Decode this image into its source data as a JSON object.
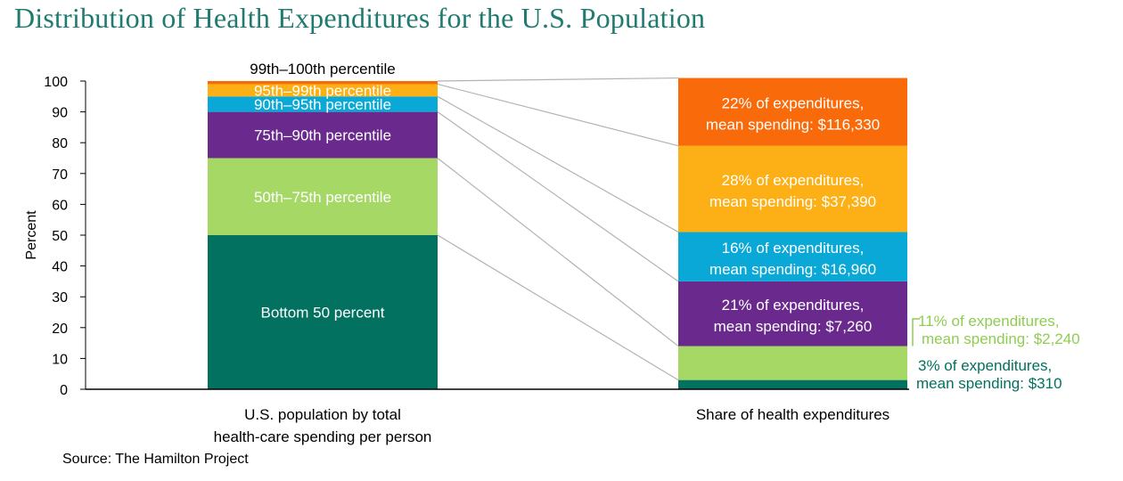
{
  "title": "Distribution of Health Expenditures for the U.S. Population",
  "source": "Source: The Hamilton Project",
  "chart_data": {
    "type": "bar",
    "stacked": true,
    "percent_stacked": true,
    "ylabel": "Percent",
    "ylim": [
      0,
      100
    ],
    "yticks": [
      0,
      10,
      20,
      30,
      40,
      50,
      60,
      70,
      80,
      90,
      100
    ],
    "grid": false,
    "categories": [
      {
        "line1": "U.S. population by total",
        "line2": "health-care spending per person"
      },
      {
        "line1": "Share of health expenditures",
        "line2": ""
      }
    ],
    "series": [
      {
        "name": "Bottom 50 percent",
        "color": "#02715f",
        "label_color": "#ffffff",
        "population": 50,
        "expenditure_share": 3,
        "share_text": "3% of expenditures,",
        "mean_text": "mean spending: $310",
        "share_label_outside": true,
        "outside_color": "#02715f"
      },
      {
        "name": "50th–75th percentile",
        "color": "#a6d866",
        "label_color": "#ffffff",
        "population": 25,
        "expenditure_share": 11,
        "share_text": "11% of expenditures,",
        "mean_text": "mean spending: $2,240",
        "share_label_outside": true,
        "outside_color": "#8fcd52"
      },
      {
        "name": "75th–90th percentile",
        "color": "#6a2a8d",
        "label_color": "#ffffff",
        "population": 15,
        "expenditure_share": 21,
        "share_text": "21% of expenditures,",
        "mean_text": "mean spending: $7,260",
        "share_label_outside": false
      },
      {
        "name": "90th–95th percentile",
        "color": "#0aa8d6",
        "label_color": "#ffffff",
        "population": 5,
        "expenditure_share": 16,
        "share_text": "16% of expenditures,",
        "mean_text": "mean spending: $16,960",
        "share_label_outside": false
      },
      {
        "name": "95th–99th percentile",
        "color": "#fcb015",
        "label_color": "#ffffff",
        "population": 4,
        "expenditure_share": 28,
        "share_text": "28% of expenditures,",
        "mean_text": "mean spending: $37,390",
        "share_label_outside": false
      },
      {
        "name": "99th–100th percentile",
        "color": "#f96a0b",
        "label_color": "#000000",
        "population": 1,
        "expenditure_share": 22,
        "share_text": "22% of expenditures,",
        "mean_text": "mean spending: $116,330",
        "share_label_outside": false,
        "population_label_above": true
      }
    ]
  }
}
